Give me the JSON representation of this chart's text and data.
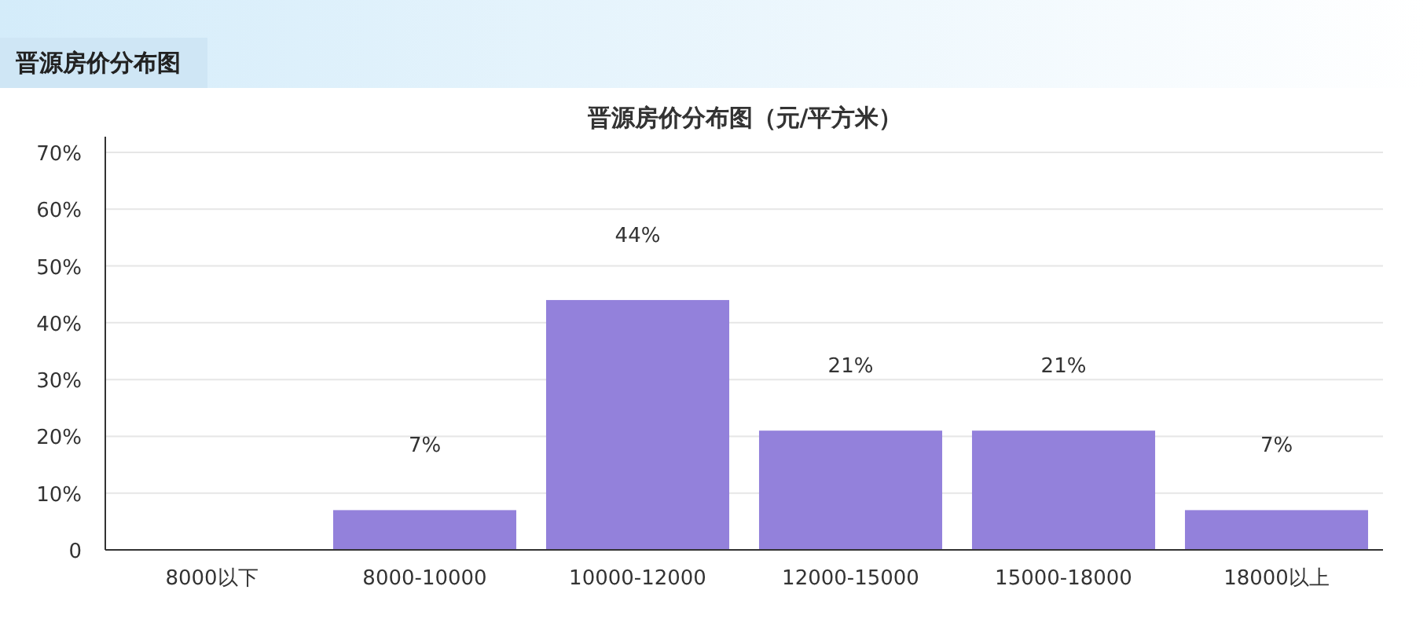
{
  "chart_data": {
    "type": "bar",
    "title": "晋源房价分布图",
    "subtitle": "晋源房价分布图（元/平方米）",
    "categories": [
      "8000以下",
      "8000-10000",
      "10000-12000",
      "12000-15000",
      "15000-18000",
      "18000以上"
    ],
    "values": [
      0,
      7,
      44,
      21,
      21,
      7
    ],
    "value_labels": [
      null,
      "7%",
      "44%",
      "21%",
      "21%",
      "7%"
    ],
    "color": "#9381db",
    "ylim": [
      0,
      70
    ],
    "yticks": [
      0,
      {
        "value": 10,
        "label": "10%"
      },
      {
        "value": 20,
        "label": "20%"
      },
      {
        "value": 30,
        "label": "30%"
      },
      {
        "value": 40,
        "label": "40%"
      },
      {
        "value": 50,
        "label": "50%"
      },
      {
        "value": 60,
        "label": "60%"
      },
      {
        "value": 70,
        "label": "70%"
      }
    ],
    "grid": "y"
  }
}
